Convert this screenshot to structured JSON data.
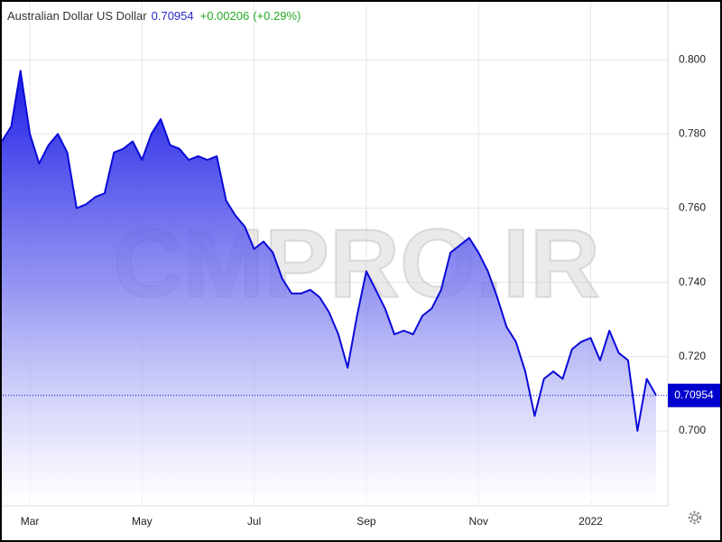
{
  "chart_data": {
    "type": "area",
    "title": "Australian Dollar US Dollar",
    "last_price": 0.70954,
    "change": "+0.00206",
    "change_percent": "(+0.29%)",
    "watermark": "CMPRO.IR",
    "categories": [
      null,
      null,
      null,
      "Mar",
      null,
      null,
      null,
      null,
      null,
      null,
      null,
      null,
      null,
      null,
      null,
      "May",
      null,
      null,
      null,
      null,
      null,
      null,
      null,
      null,
      null,
      null,
      null,
      "Jul",
      null,
      null,
      null,
      null,
      null,
      null,
      null,
      null,
      null,
      null,
      null,
      "Sep",
      null,
      null,
      null,
      null,
      null,
      null,
      null,
      null,
      null,
      null,
      null,
      "Nov",
      null,
      null,
      null,
      null,
      null,
      null,
      null,
      null,
      null,
      null,
      null,
      "2022",
      null,
      null,
      null,
      null,
      null,
      null,
      null
    ],
    "series": [
      {
        "name": "Australian Dollar US Dollar",
        "color": "#0a0ad8",
        "values": [
          0.778,
          0.782,
          0.797,
          0.78,
          0.772,
          0.777,
          0.78,
          0.775,
          0.76,
          0.761,
          0.763,
          0.764,
          0.775,
          0.776,
          0.778,
          0.773,
          0.78,
          0.784,
          0.777,
          0.776,
          0.773,
          0.774,
          0.773,
          0.774,
          0.762,
          0.758,
          0.755,
          0.749,
          0.751,
          0.748,
          0.741,
          0.737,
          0.737,
          0.738,
          0.736,
          0.732,
          0.726,
          0.717,
          0.731,
          0.743,
          0.738,
          0.733,
          0.726,
          0.727,
          0.726,
          0.731,
          0.733,
          0.738,
          0.748,
          0.75,
          0.752,
          0.748,
          0.743,
          0.736,
          0.728,
          0.724,
          0.716,
          0.704,
          0.714,
          0.716,
          0.714,
          0.722,
          0.724,
          0.725,
          0.719,
          0.727,
          0.721,
          0.719,
          0.7,
          0.714,
          0.70954
        ]
      }
    ],
    "ylim": [
      0.681,
      0.81
    ],
    "yticks": [
      {
        "value": 0.7,
        "label": "0.700"
      },
      {
        "value": 0.72,
        "label": "0.720"
      },
      {
        "value": 0.74,
        "label": "0.740"
      },
      {
        "value": 0.76,
        "label": "0.760"
      },
      {
        "value": 0.78,
        "label": "0.780"
      },
      {
        "value": 0.8,
        "label": "0.800"
      }
    ],
    "grid": true,
    "price_tag_color": "#0000cc"
  }
}
